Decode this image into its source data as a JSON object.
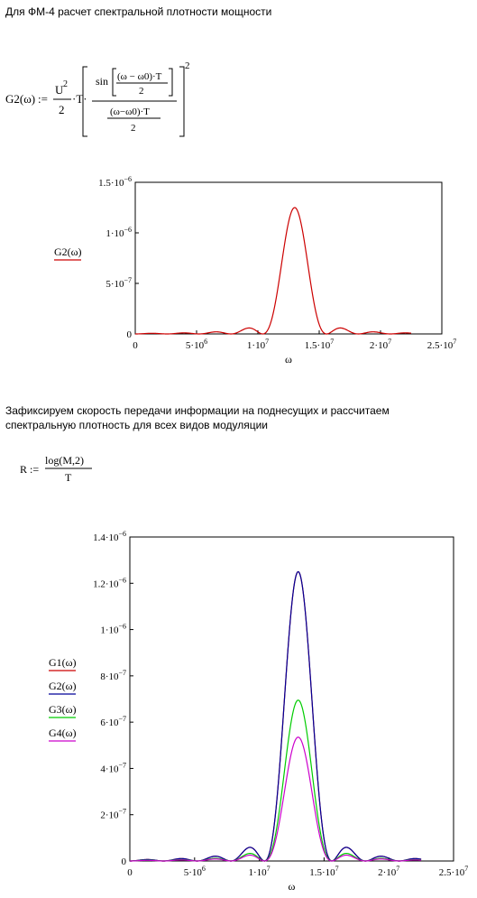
{
  "heading1": "Для ФМ-4 расчет спектральной плотности мощности",
  "paragraph2_line1": "Зафиксируем скорость передачи информации на поднесущих и рассчитаем",
  "paragraph2_line2": "спектральную плотность для всех видов модуляции",
  "formula1": {
    "lhs": "G2(ω)",
    "assign": ":=",
    "u": "U",
    "exp2": "2",
    "two": "2",
    "dotT": "·T·",
    "sin": "sin",
    "inner_num": "(ω − ω0)·T",
    "inner_den": "2",
    "denom_num": "(ω−ω0)·T",
    "denom_den": "2",
    "outer_exp": "2"
  },
  "formula2": {
    "lhs": "R :=",
    "num": "log(M,2)",
    "den": "T"
  },
  "chart_data": [
    {
      "type": "line",
      "title": "",
      "xlabel": "ω",
      "ylabel": "G2(ω)",
      "xlim": [
        0,
        25000000
      ],
      "ylim": [
        0,
        1.5e-06
      ],
      "x_ticks": [
        {
          "v": 0,
          "base": "0",
          "exp": ""
        },
        {
          "v": 5000000,
          "base": "5·10",
          "exp": "6"
        },
        {
          "v": 10000000,
          "base": "1·10",
          "exp": "7"
        },
        {
          "v": 15000000,
          "base": "1.5·10",
          "exp": "7"
        },
        {
          "v": 20000000,
          "base": "2·10",
          "exp": "7"
        },
        {
          "v": 25000000,
          "base": "2.5·10",
          "exp": "7"
        }
      ],
      "y_ticks": [
        {
          "v": 0,
          "base": "0",
          "exp": ""
        },
        {
          "v": 5e-07,
          "base": "5·10",
          "exp": "−7"
        },
        {
          "v": 1e-06,
          "base": "1·10",
          "exp": "−6"
        },
        {
          "v": 1.5e-06,
          "base": "1.5·10",
          "exp": "−6"
        }
      ],
      "x_range": [
        0,
        22500000
      ],
      "center": 13000000,
      "null_spacing": 2600000,
      "series": [
        {
          "name": "G2(ω)",
          "peak": 1.25e-06,
          "color": "#cc0000"
        }
      ]
    },
    {
      "type": "line",
      "title": "",
      "xlabel": "ω",
      "xlim": [
        0,
        25000000
      ],
      "ylim": [
        0,
        1.4e-06
      ],
      "x_ticks": [
        {
          "v": 0,
          "base": "0",
          "exp": ""
        },
        {
          "v": 5000000,
          "base": "5·10",
          "exp": "6"
        },
        {
          "v": 10000000,
          "base": "1·10",
          "exp": "7"
        },
        {
          "v": 15000000,
          "base": "1.5·10",
          "exp": "7"
        },
        {
          "v": 20000000,
          "base": "2·10",
          "exp": "7"
        },
        {
          "v": 25000000,
          "base": "2.5·10",
          "exp": "7"
        }
      ],
      "y_ticks": [
        {
          "v": 0,
          "base": "0",
          "exp": ""
        },
        {
          "v": 2e-07,
          "base": "2·10",
          "exp": "−7"
        },
        {
          "v": 4e-07,
          "base": "4·10",
          "exp": "−7"
        },
        {
          "v": 6e-07,
          "base": "6·10",
          "exp": "−7"
        },
        {
          "v": 8e-07,
          "base": "8·10",
          "exp": "−7"
        },
        {
          "v": 1e-06,
          "base": "1·10",
          "exp": "−6"
        },
        {
          "v": 1.2e-06,
          "base": "1.2·10",
          "exp": "−6"
        },
        {
          "v": 1.4e-06,
          "base": "1.4·10",
          "exp": "−6"
        }
      ],
      "x_range": [
        0,
        22500000
      ],
      "center": 13000000,
      "null_spacing": 2600000,
      "series": [
        {
          "name": "G1(ω)",
          "peak": 1.25e-06,
          "color": "#cc0000"
        },
        {
          "name": "G2(ω)",
          "peak": 1.25e-06,
          "color": "#000099"
        },
        {
          "name": "G3(ω)",
          "peak": 6.95e-07,
          "color": "#00cc00"
        },
        {
          "name": "G4(ω)",
          "peak": 5.35e-07,
          "color": "#cc00cc"
        }
      ]
    }
  ]
}
